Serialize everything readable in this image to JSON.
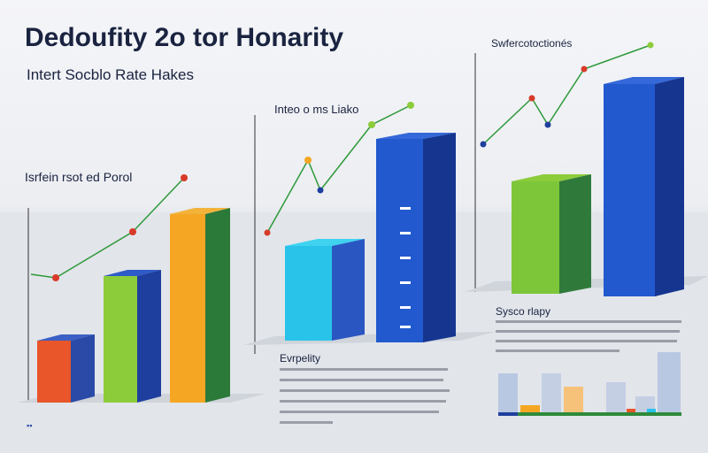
{
  "header": {
    "title": "Dedoufity 2o tor Honarity",
    "subtitle": "Intert Socblo Rate Hakes"
  },
  "panels": [
    {
      "label": "Isrfein rsot ed Porol"
    },
    {
      "label": "Inteo o ms Liako"
    },
    {
      "label": "Swfercotoctionés"
    }
  ],
  "notes": [
    {
      "heading": "Evrpelity"
    },
    {
      "heading": "Sysco rlapy"
    }
  ]
}
